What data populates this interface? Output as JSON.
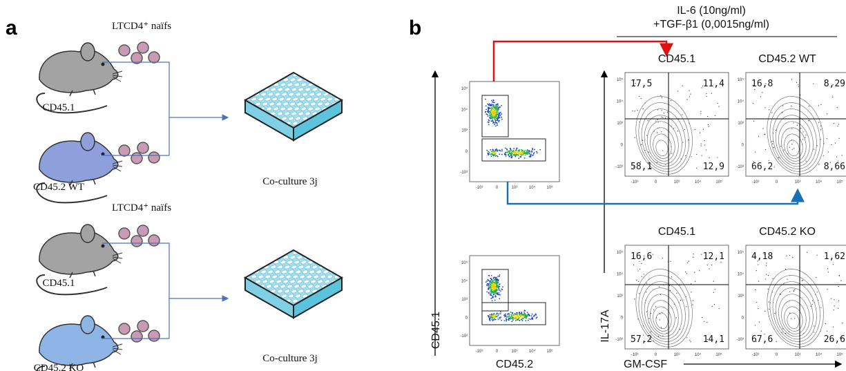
{
  "panel_a": {
    "label": "a",
    "groups": [
      {
        "header": "LTCD4⁺ naïfs",
        "mice": [
          "CD45.1",
          "CD45.2 WT"
        ],
        "result": "Co-culture 3j"
      },
      {
        "header": "LTCD4⁺ naïfs",
        "mice": [
          "CD45.1",
          "CD45.2 KO"
        ],
        "result": "Co-culture 3j"
      }
    ]
  },
  "panel_b": {
    "label": "b",
    "condition": [
      "IL-6 (10ng/ml)",
      "+TGF-β1 (0,0015ng/ml)"
    ],
    "gate_axes": {
      "y": "CD45.1",
      "x": "CD45.2"
    },
    "contour_axes": {
      "y": "IL-17A",
      "x": "GM-CSF"
    },
    "axis_ticks": {
      "y": [
        "10⁵",
        "10⁴",
        "10³",
        "0",
        "-10³"
      ],
      "x": [
        "-10³",
        "0",
        "10³",
        "10⁴",
        "10⁵"
      ]
    },
    "contour_plots": [
      {
        "title": "CD45.1",
        "quadrants": [
          "17,5",
          "11,4",
          "58,1",
          "12,9"
        ]
      },
      {
        "title": "CD45.2 WT",
        "quadrants": [
          "16,8",
          "8,29",
          "66,2",
          "8,66"
        ]
      },
      {
        "title": "CD45.1",
        "quadrants": [
          "16,6",
          "12,1",
          "57,2",
          "14,1"
        ]
      },
      {
        "title": "CD45.2 KO",
        "quadrants": [
          "4,18",
          "1,62",
          "67,6",
          "26,6"
        ]
      }
    ]
  }
}
